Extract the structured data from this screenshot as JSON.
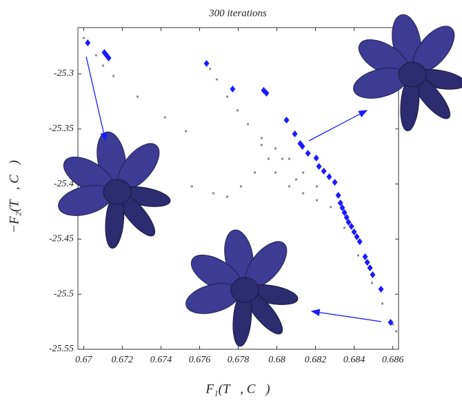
{
  "chart_data": {
    "type": "scatter",
    "title": "300 iterations",
    "x_label": "F₁(T⃗, C⃗)",
    "y_label": "−F₂(T⃗, C⃗)",
    "xlim": [
      0.6697,
      0.6863
    ],
    "ylim": [
      -25.55,
      -25.258
    ],
    "xticks": [
      0.67,
      0.672,
      0.674,
      0.676,
      0.678,
      0.68,
      0.682,
      0.684,
      0.686
    ],
    "yticks": [
      -25.3,
      -25.35,
      -25.4,
      -25.45,
      -25.5,
      -25.55
    ],
    "series": [
      {
        "color": "#8a8a8a",
        "marker": "dot",
        "x": [
          0.67,
          0.67064,
          0.671,
          0.67154,
          0.67279,
          0.67421,
          0.67529,
          0.67654,
          0.67689,
          0.67743,
          0.67796,
          0.6785,
          0.67921,
          0.67993,
          0.68064,
          0.68136,
          0.68207,
          0.68279,
          0.6835,
          0.68421,
          0.68493,
          0.68546,
          0.686,
          0.68618,
          0.6756,
          0.67671,
          0.67743,
          0.67814,
          0.67886,
          0.67957,
          0.67993,
          0.68064,
          0.68136,
          0.68207,
          0.67921,
          0.68029,
          0.681
        ],
        "y": [
          -25.2674,
          -25.2831,
          -25.2925,
          -25.3019,
          -25.3207,
          -25.3395,
          -25.352,
          -25.2956,
          -25.305,
          -25.3207,
          -25.3332,
          -25.3457,
          -25.3583,
          -25.3677,
          -25.3771,
          -25.3896,
          -25.4021,
          -25.4209,
          -25.4397,
          -25.4648,
          -25.4898,
          -25.5086,
          -25.5274,
          -25.5337,
          -25.4021,
          -25.4084,
          -25.4115,
          -25.4021,
          -25.3896,
          -25.3771,
          -25.3896,
          -25.4021,
          -25.4084,
          -25.4147,
          -25.3646,
          -25.3771,
          -25.3959
        ]
      },
      {
        "color": "#1a1aff",
        "marker": "diamond",
        "x": [
          0.67021,
          0.67107,
          0.67118,
          0.67129,
          0.67636,
          0.67771,
          0.67932,
          0.67946,
          0.6805,
          0.68093,
          0.68121,
          0.68132,
          0.68161,
          0.68204,
          0.68218,
          0.68243,
          0.68271,
          0.683,
          0.68318,
          0.68329,
          0.68339,
          0.6835,
          0.68361,
          0.68371,
          0.68386,
          0.684,
          0.68414,
          0.68429,
          0.68457,
          0.68468,
          0.68482,
          0.68496,
          0.68539,
          0.68589
        ],
        "y": [
          -25.2718,
          -25.2806,
          -25.2831,
          -25.2856,
          -25.2906,
          -25.3138,
          -25.315,
          -25.3175,
          -25.342,
          -25.3545,
          -25.3633,
          -25.3658,
          -25.3721,
          -25.3764,
          -25.384,
          -25.3883,
          -25.3934,
          -25.3984,
          -25.4103,
          -25.4172,
          -25.4216,
          -25.4259,
          -25.4303,
          -25.4347,
          -25.4385,
          -25.4435,
          -25.4479,
          -25.4523,
          -25.466,
          -25.4711,
          -25.4761,
          -25.4823,
          -25.4955,
          -25.5256
        ]
      }
    ]
  }
}
